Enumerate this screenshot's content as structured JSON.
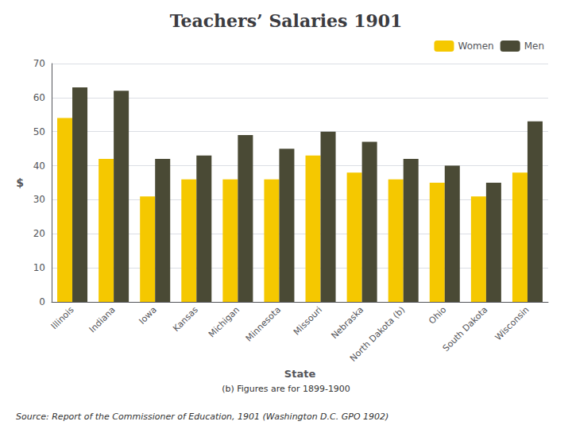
{
  "chart_data": {
    "type": "bar",
    "title": "Teachers’ Salaries 1901",
    "categories": [
      "Illinois",
      "Indiana",
      "Iowa",
      "Kansas",
      "Michigan",
      "Minnesota",
      "Missouri",
      "Nebraska",
      "North Dakota (b)",
      "Ohio",
      "South Dakota",
      "Wisconsin"
    ],
    "series": [
      {
        "name": "Women",
        "color": "#F5C800",
        "values": [
          54,
          42,
          31,
          36,
          36,
          36,
          43,
          38,
          36,
          35,
          31,
          38
        ]
      },
      {
        "name": "Men",
        "color": "#4A4A35",
        "values": [
          63,
          62,
          42,
          43,
          49,
          45,
          50,
          47,
          42,
          40,
          35,
          53
        ]
      }
    ],
    "xlabel": "State",
    "ylabel": "$",
    "annotations": [
      "(b) Figures are for 1899-1900",
      "Source: Report of the Commissioner of Education, 1901 (Washington D.C. GPO 1902)"
    ],
    "ylim": [
      0,
      70
    ],
    "yticks": [
      0,
      10,
      20,
      30,
      40,
      50,
      60,
      70
    ],
    "grid": true,
    "legend": "upper right"
  }
}
